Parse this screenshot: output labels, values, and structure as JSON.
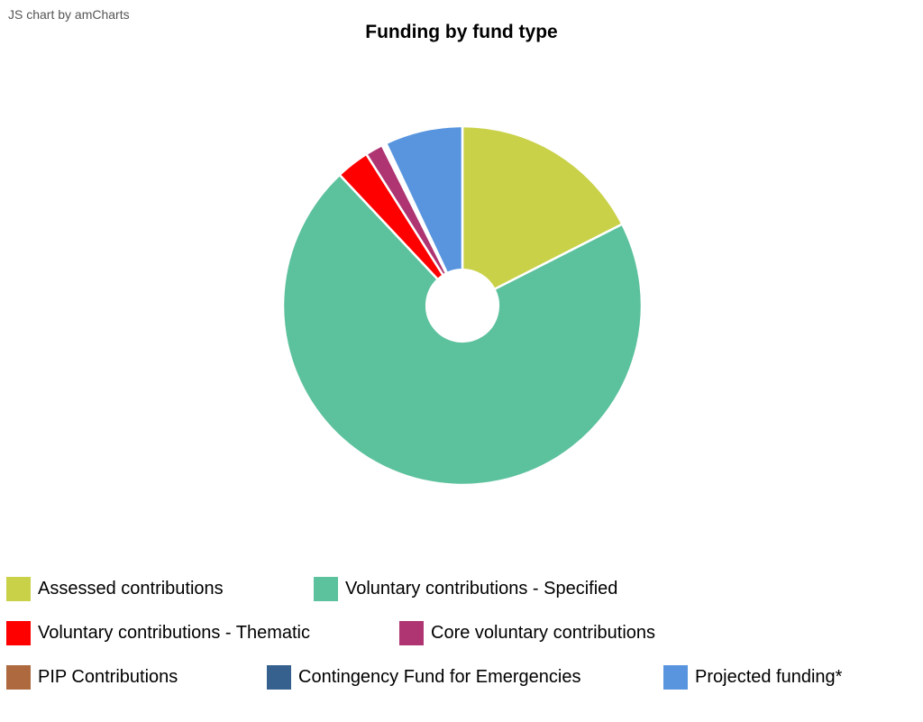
{
  "credit": "JS chart by amCharts",
  "chart_data": {
    "type": "pie",
    "title": "Funding by fund type",
    "unit": "percent (estimated)",
    "inner_radius_fraction": 0.2,
    "slices": [
      {
        "label": "Assessed contributions",
        "value": 17.5,
        "color": "#C9D149"
      },
      {
        "label": "Voluntary contributions - Specified",
        "value": 70.5,
        "color": "#5CC19D"
      },
      {
        "label": "Voluntary contributions - Thematic",
        "value": 3.0,
        "color": "#FF0000"
      },
      {
        "label": "Core voluntary contributions",
        "value": 1.6,
        "color": "#AE3571"
      },
      {
        "label": "PIP Contributions",
        "value": 0.2,
        "color": "#AE6A3E"
      },
      {
        "label": "Contingency Fund for Emergencies",
        "value": 0.2,
        "color": "#36618F"
      },
      {
        "label": "Projected funding*",
        "value": 7.0,
        "color": "#5895DE"
      }
    ],
    "legend_position": "bottom"
  }
}
